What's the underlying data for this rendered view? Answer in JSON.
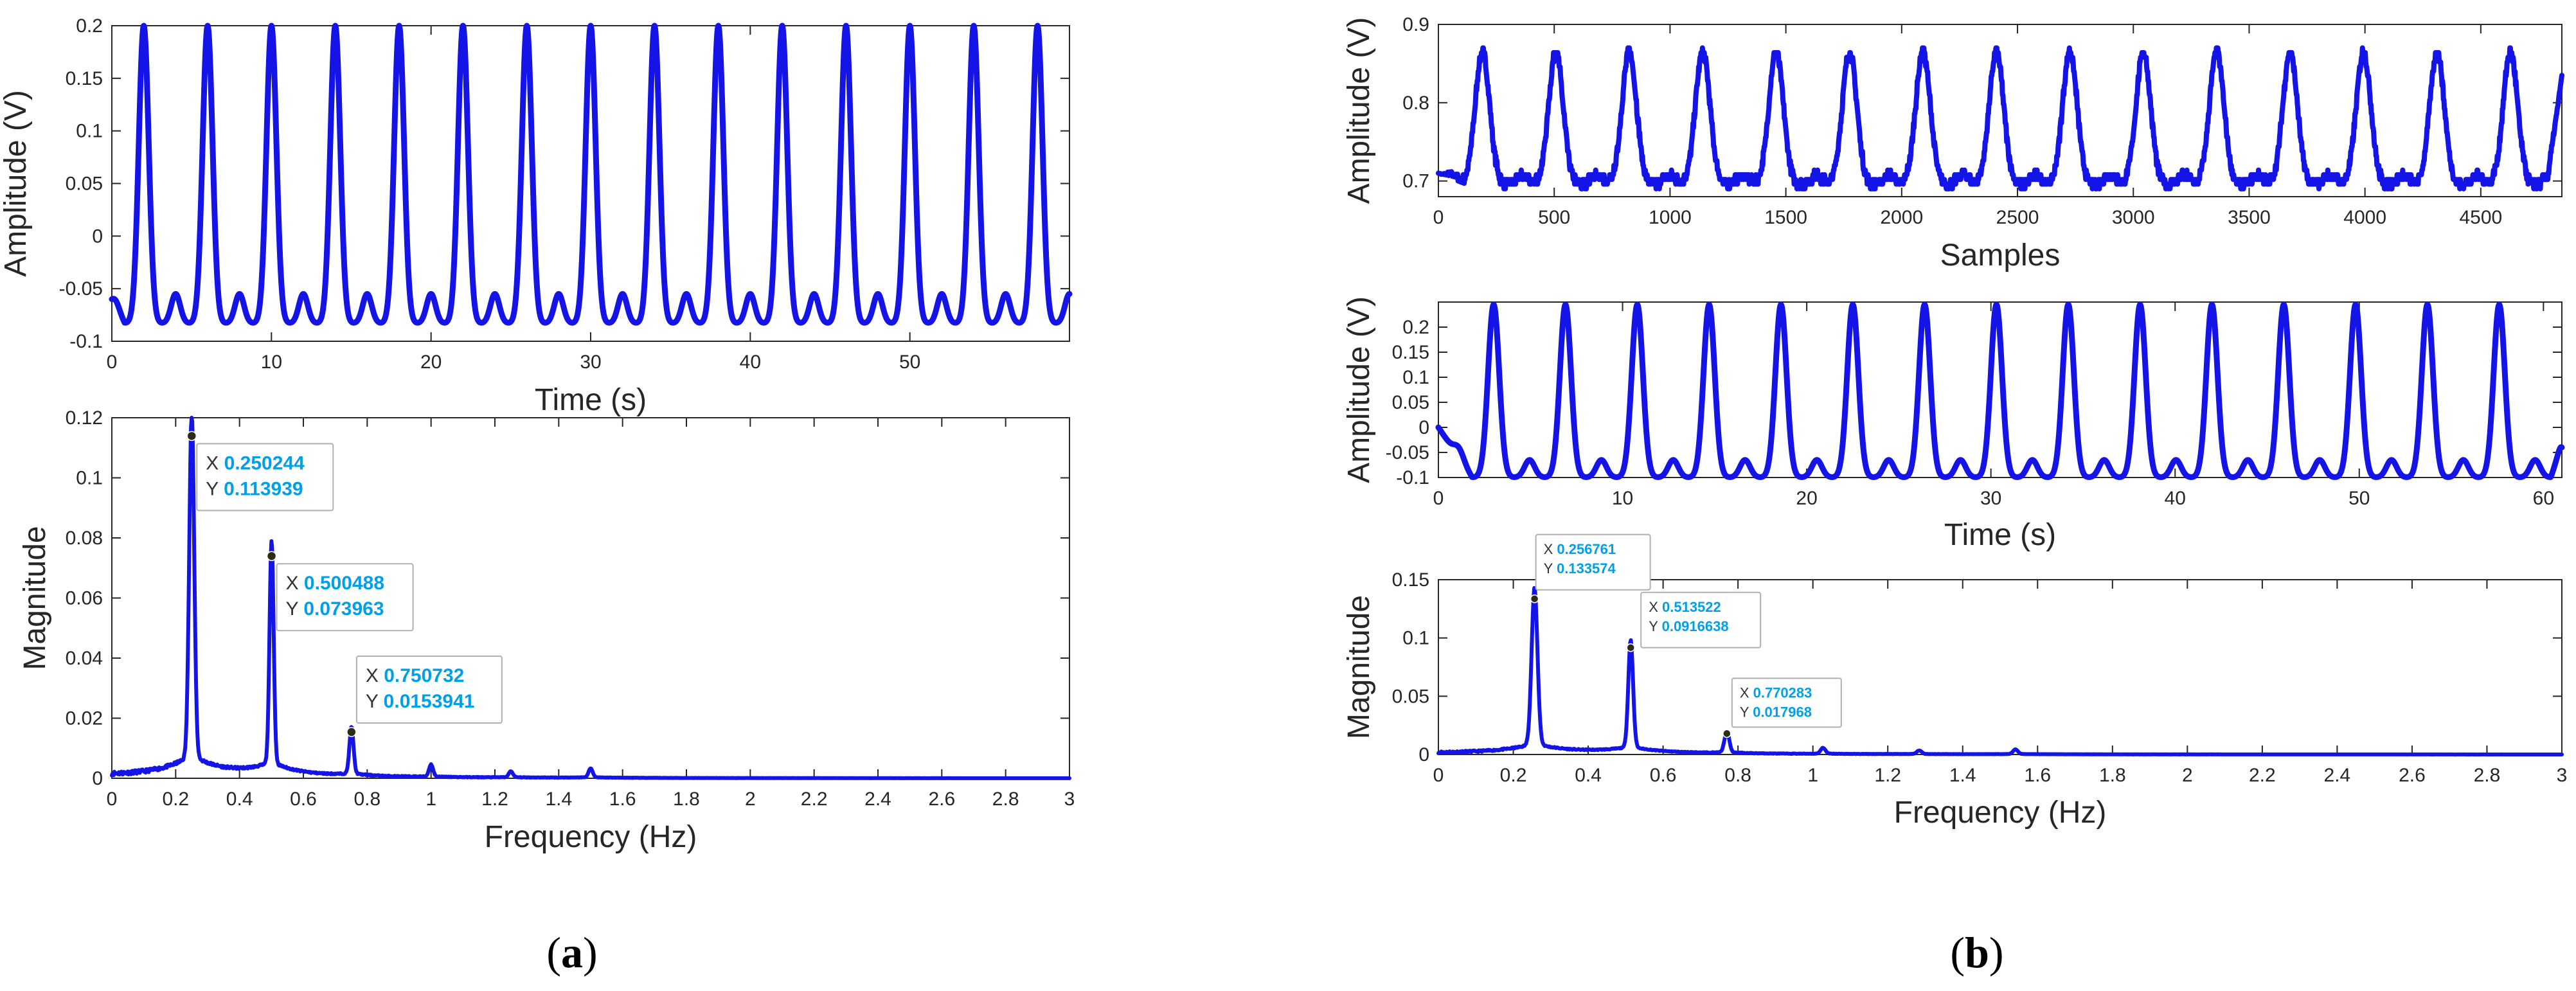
{
  "colors": {
    "series": "#1414e6",
    "datatip_value": "#00a0e8",
    "axis": "#262626"
  },
  "captions": {
    "a": "a",
    "b": "b"
  },
  "chart_data": [
    {
      "id": "a1",
      "type": "line",
      "title": "",
      "xlabel": "Time (s)",
      "ylabel": "Amplitude (V)",
      "xlim": [
        0,
        60
      ],
      "ylim": [
        -0.1,
        0.2
      ],
      "xticks": [
        0,
        10,
        20,
        30,
        40,
        50
      ],
      "yticks": [
        -0.1,
        -0.05,
        0,
        0.05,
        0.1,
        0.15,
        0.2
      ],
      "xtick_labels": [
        "0",
        "10",
        "20",
        "30",
        "40",
        "50"
      ],
      "ytick_labels": [
        "-0.1",
        "-0.05",
        "0",
        "0.05",
        "0.1",
        "0.15",
        "0.2"
      ],
      "grid": false,
      "signal": {
        "period_s": 4.0,
        "first_peak_s": 2.0,
        "peak": 0.2,
        "trough": -0.083,
        "secondary_bump": -0.055,
        "start_value": -0.06
      }
    },
    {
      "id": "a2",
      "type": "line",
      "title": "",
      "xlabel": "Frequency (Hz)",
      "ylabel": "Magnitude",
      "xlim": [
        0,
        3
      ],
      "ylim": [
        0,
        0.12
      ],
      "xticks": [
        0,
        0.2,
        0.4,
        0.6,
        0.8,
        1,
        1.2,
        1.4,
        1.6,
        1.8,
        2,
        2.2,
        2.4,
        2.6,
        2.8,
        3
      ],
      "yticks": [
        0,
        0.02,
        0.04,
        0.06,
        0.08,
        0.1,
        0.12
      ],
      "xtick_labels": [
        "0",
        "0.2",
        "0.4",
        "0.6",
        "0.8",
        "1",
        "1.2",
        "1.4",
        "1.6",
        "1.8",
        "2",
        "2.2",
        "2.4",
        "2.6",
        "2.8",
        "3"
      ],
      "ytick_labels": [
        "0",
        "0.02",
        "0.04",
        "0.06",
        "0.08",
        "0.1",
        "0.12"
      ],
      "grid": false,
      "peaks": [
        {
          "x": 0.250244,
          "y": 0.113939
        },
        {
          "x": 0.500488,
          "y": 0.073963
        },
        {
          "x": 0.750732,
          "y": 0.0153941
        },
        {
          "x": 1.0,
          "y": 0.004
        },
        {
          "x": 1.25,
          "y": 0.002
        },
        {
          "x": 1.5,
          "y": 0.003
        }
      ],
      "datatips": [
        {
          "x": "0.250244",
          "y": "0.113939"
        },
        {
          "x": "0.500488",
          "y": "0.073963"
        },
        {
          "x": "0.750732",
          "y": "0.0153941"
        }
      ]
    },
    {
      "id": "b1",
      "type": "line",
      "title": "",
      "xlabel": "Samples",
      "ylabel": "Amplitude (V)",
      "xlim": [
        0,
        4850
      ],
      "ylim": [
        0.68,
        0.9
      ],
      "xticks": [
        0,
        500,
        1000,
        1500,
        2000,
        2500,
        3000,
        3500,
        4000,
        4500
      ],
      "yticks": [
        0.7,
        0.8,
        0.9
      ],
      "xtick_labels": [
        "0",
        "500",
        "1000",
        "1500",
        "2000",
        "2500",
        "3000",
        "3500",
        "4000",
        "4500"
      ],
      "ytick_labels": [
        "0.7",
        "0.8",
        "0.9"
      ],
      "grid": false,
      "signal": {
        "period_samples": 317,
        "first_peak": 190,
        "peak": 0.865,
        "trough": 0.695,
        "baseline": 0.705,
        "start_value": 0.71,
        "end_value": 0.835
      }
    },
    {
      "id": "b2",
      "type": "line",
      "title": "",
      "xlabel": "Time (s)",
      "ylabel": "Amplitude (V)",
      "xlim": [
        0,
        61
      ],
      "ylim": [
        -0.1,
        0.25
      ],
      "xticks": [
        0,
        10,
        20,
        30,
        40,
        50,
        60
      ],
      "yticks": [
        -0.1,
        -0.05,
        0,
        0.05,
        0.1,
        0.15,
        0.2
      ],
      "xtick_labels": [
        "0",
        "10",
        "20",
        "30",
        "40",
        "50",
        "60"
      ],
      "ytick_labels": [
        "-0.1",
        "-0.05",
        "0",
        "0.05",
        "0.1",
        "0.15",
        "0.2"
      ],
      "grid": false,
      "signal": {
        "period_s": 3.9,
        "first_peak_s": 3.0,
        "peak": 0.245,
        "trough": -0.1,
        "secondary_bump": -0.065,
        "start_value": 0.0,
        "end_value": -0.04
      }
    },
    {
      "id": "b3",
      "type": "line",
      "title": "",
      "xlabel": "Frequency (Hz)",
      "ylabel": "Magnitude",
      "xlim": [
        0,
        3
      ],
      "ylim": [
        0,
        0.15
      ],
      "xticks": [
        0,
        0.2,
        0.4,
        0.6,
        0.8,
        1,
        1.2,
        1.4,
        1.6,
        1.8,
        2,
        2.2,
        2.4,
        2.6,
        2.8,
        3
      ],
      "yticks": [
        0,
        0.05,
        0.1,
        0.15
      ],
      "xtick_labels": [
        "0",
        "0.2",
        "0.4",
        "0.6",
        "0.8",
        "1",
        "1.2",
        "1.4",
        "1.6",
        "1.8",
        "2",
        "2.2",
        "2.4",
        "2.6",
        "2.8",
        "3"
      ],
      "ytick_labels": [
        "0",
        "0.05",
        "0.1",
        "0.15"
      ],
      "grid": false,
      "peaks": [
        {
          "x": 0.256761,
          "y": 0.133574
        },
        {
          "x": 0.513522,
          "y": 0.0916638
        },
        {
          "x": 0.770283,
          "y": 0.017968
        },
        {
          "x": 1.027,
          "y": 0.005
        },
        {
          "x": 1.284,
          "y": 0.003
        },
        {
          "x": 1.541,
          "y": 0.004
        }
      ],
      "datatips": [
        {
          "x": "0.256761",
          "y": "0.133574"
        },
        {
          "x": "0.513522",
          "y": "0.0916638"
        },
        {
          "x": "0.770283",
          "y": "0.017968"
        }
      ]
    }
  ]
}
